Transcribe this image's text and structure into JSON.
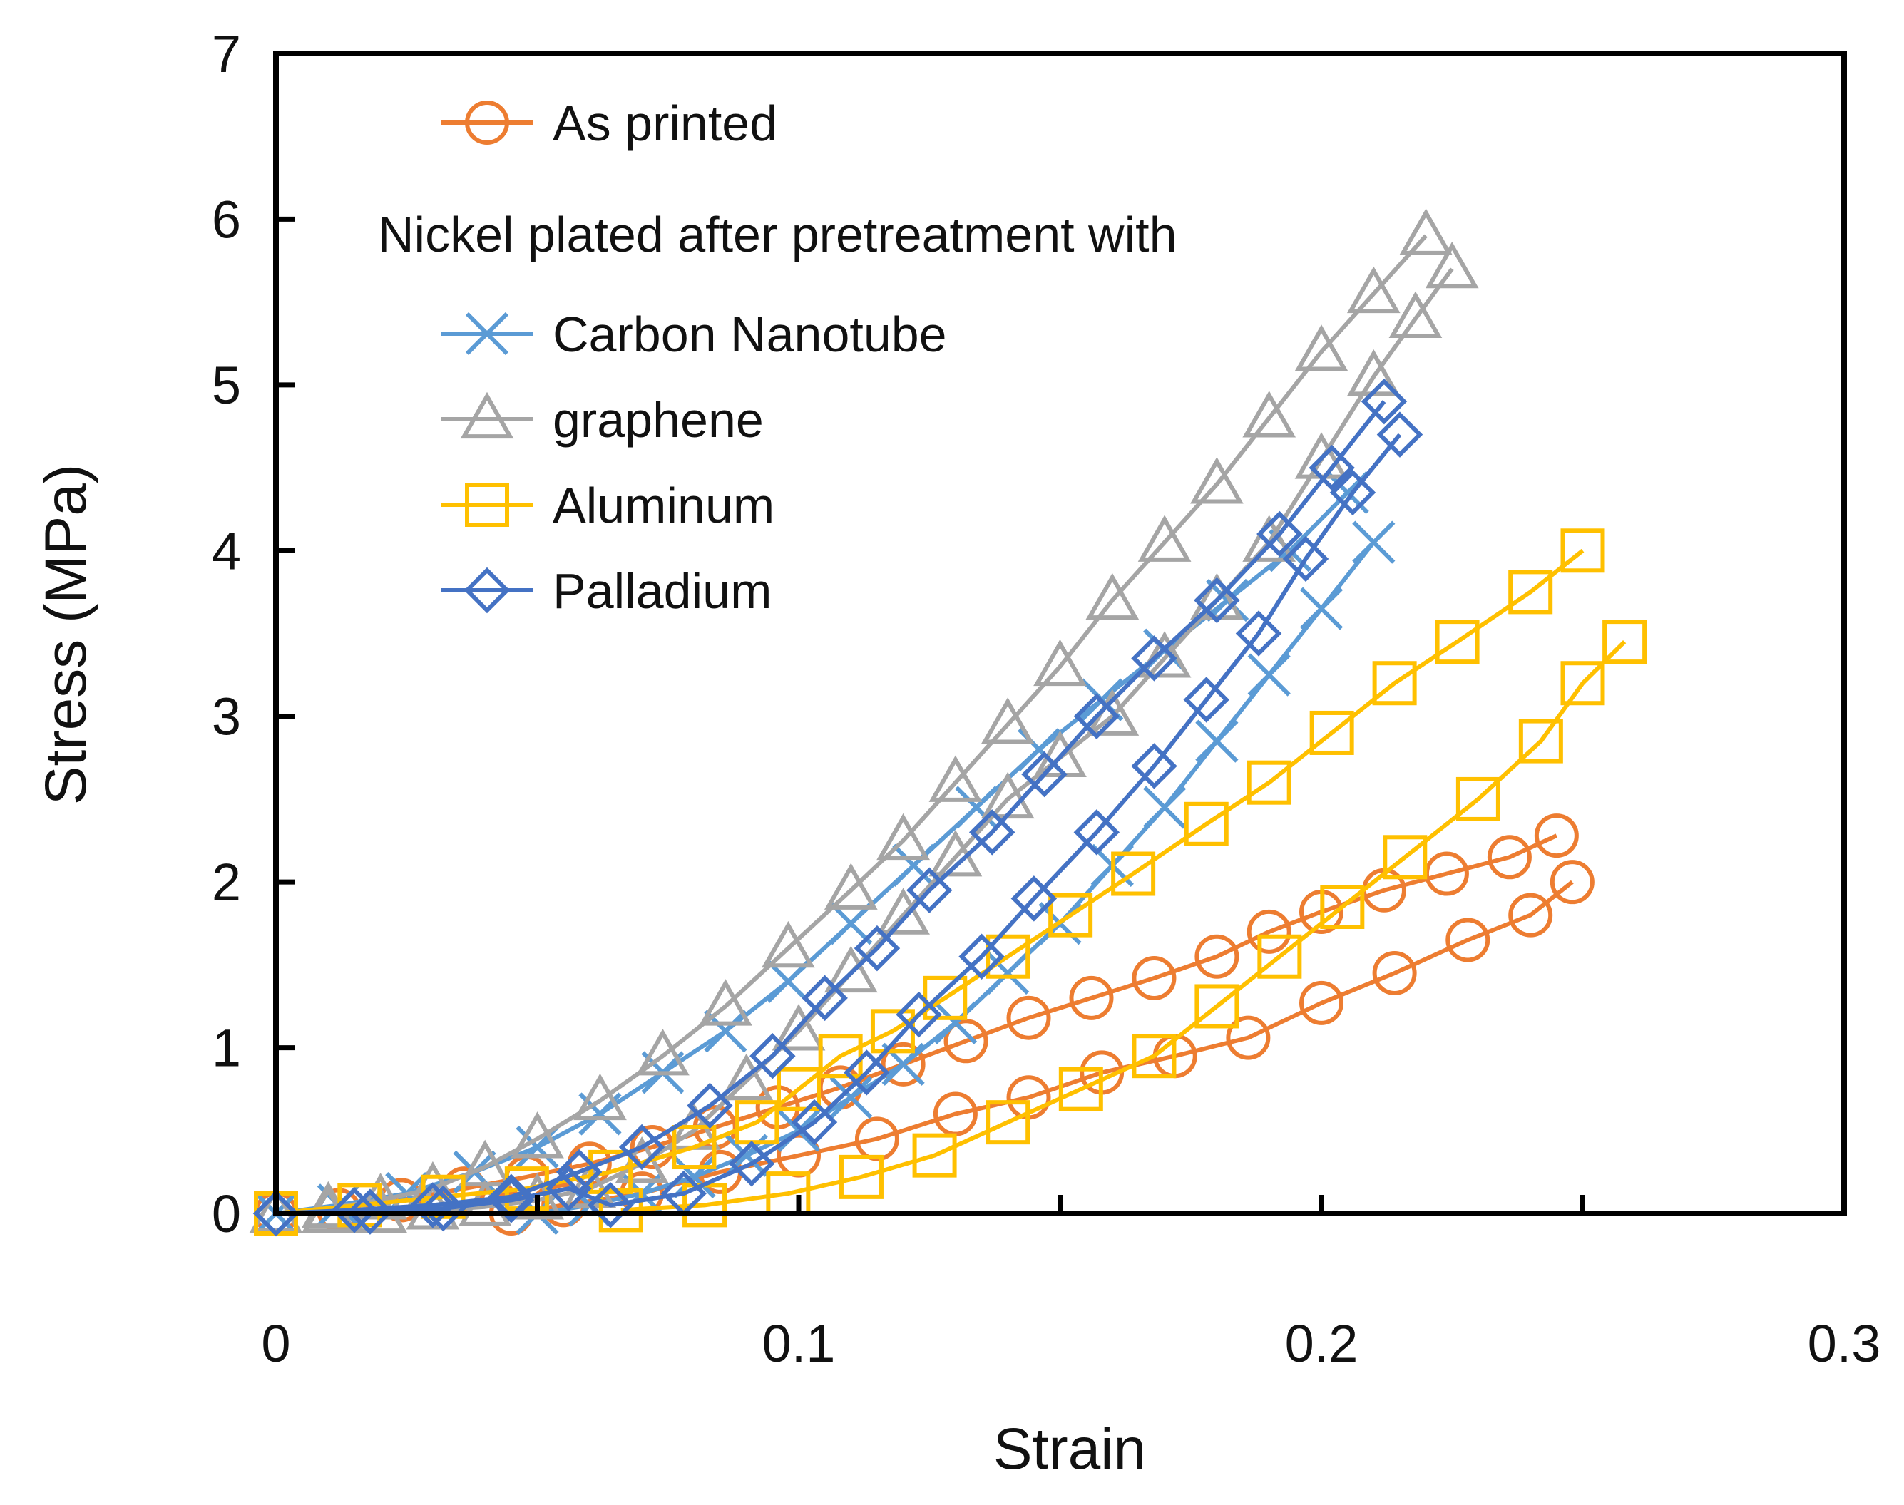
{
  "chart_data": {
    "type": "scatter",
    "xlabel": "Strain",
    "ylabel": "Stress (MPa)",
    "xlim": [
      0,
      0.3
    ],
    "ylim": [
      0,
      7
    ],
    "xticks": [
      "0",
      "0.1",
      "0.2",
      "0.3"
    ],
    "yticks": [
      "0",
      "1",
      "2",
      "3",
      "4",
      "5",
      "6",
      "7"
    ],
    "grid": false,
    "legend": {
      "placement": "top-left",
      "heading": "Nickel plated after pretreatment with"
    },
    "series": [
      {
        "name": "As printed",
        "color": "#ED7D31",
        "marker": "circle",
        "loading": {
          "x": [
            0.0,
            0.012,
            0.024,
            0.036,
            0.048,
            0.06,
            0.072,
            0.084,
            0.096,
            0.108,
            0.12,
            0.132,
            0.144,
            0.156,
            0.168,
            0.18,
            0.19,
            0.2,
            0.212,
            0.224,
            0.236,
            0.245
          ],
          "y": [
            0.0,
            0.02,
            0.08,
            0.15,
            0.22,
            0.3,
            0.4,
            0.52,
            0.64,
            0.76,
            0.9,
            1.04,
            1.18,
            1.3,
            1.42,
            1.55,
            1.7,
            1.82,
            1.95,
            2.05,
            2.15,
            2.28
          ]
        },
        "unloading": {
          "x": [
            0.248,
            0.24,
            0.228,
            0.214,
            0.2,
            0.186,
            0.172,
            0.158,
            0.144,
            0.13,
            0.115,
            0.1,
            0.085,
            0.07,
            0.055,
            0.045
          ],
          "y": [
            2.0,
            1.8,
            1.65,
            1.45,
            1.27,
            1.06,
            0.95,
            0.85,
            0.7,
            0.6,
            0.45,
            0.35,
            0.25,
            0.12,
            0.05,
            0.0
          ]
        }
      },
      {
        "name": "Carbon Nanotube",
        "color": "#5B9BD5",
        "marker": "x",
        "loading": {
          "x": [
            0.0,
            0.012,
            0.025,
            0.038,
            0.05,
            0.062,
            0.074,
            0.086,
            0.098,
            0.11,
            0.122,
            0.134,
            0.146,
            0.158,
            0.17,
            0.182,
            0.194,
            0.205
          ],
          "y": [
            0.0,
            0.05,
            0.12,
            0.25,
            0.4,
            0.6,
            0.85,
            1.1,
            1.4,
            1.75,
            2.1,
            2.45,
            2.8,
            3.1,
            3.4,
            3.7,
            4.0,
            4.35
          ]
        },
        "unloading": {
          "x": [
            0.21,
            0.2,
            0.19,
            0.18,
            0.17,
            0.16,
            0.15,
            0.14,
            0.13,
            0.12,
            0.11,
            0.1,
            0.09,
            0.08,
            0.07,
            0.06,
            0.05
          ],
          "y": [
            4.05,
            3.65,
            3.25,
            2.85,
            2.45,
            2.1,
            1.75,
            1.45,
            1.15,
            0.9,
            0.7,
            0.5,
            0.35,
            0.22,
            0.12,
            0.05,
            0.0
          ]
        }
      },
      {
        "name": "graphene",
        "color": "#A5A5A5",
        "marker": "triangle",
        "loading": {
          "x": [
            0.0,
            0.01,
            0.02,
            0.03,
            0.04,
            0.05,
            0.062,
            0.074,
            0.086,
            0.098,
            0.11,
            0.12,
            0.13,
            0.14,
            0.15,
            0.16,
            0.17,
            0.18,
            0.19,
            0.2,
            0.21,
            0.22
          ],
          "y": [
            0.0,
            0.03,
            0.08,
            0.15,
            0.28,
            0.45,
            0.68,
            0.95,
            1.25,
            1.6,
            1.95,
            2.25,
            2.6,
            2.95,
            3.3,
            3.7,
            4.05,
            4.4,
            4.8,
            5.2,
            5.55,
            5.9
          ]
        },
        "unloading": {
          "x": [
            0.225,
            0.218,
            0.21,
            0.2,
            0.19,
            0.18,
            0.17,
            0.16,
            0.15,
            0.14,
            0.13,
            0.12,
            0.11,
            0.1,
            0.09,
            0.08,
            0.07,
            0.06,
            0.05,
            0.04,
            0.03,
            0.02,
            0.01
          ],
          "y": [
            5.7,
            5.4,
            5.05,
            4.55,
            4.05,
            3.7,
            3.35,
            3.0,
            2.75,
            2.5,
            2.15,
            1.8,
            1.45,
            1.1,
            0.8,
            0.5,
            0.3,
            0.15,
            0.08,
            0.04,
            0.02,
            0.0,
            0.0
          ]
        }
      },
      {
        "name": "Aluminum",
        "color": "#FFC000",
        "marker": "square",
        "loading": {
          "x": [
            0.0,
            0.016,
            0.032,
            0.048,
            0.064,
            0.08,
            0.092,
            0.1,
            0.108,
            0.118,
            0.128,
            0.14,
            0.152,
            0.164,
            0.178,
            0.19,
            0.202,
            0.214,
            0.226,
            0.24,
            0.25
          ],
          "y": [
            0.0,
            0.05,
            0.1,
            0.15,
            0.25,
            0.4,
            0.55,
            0.75,
            0.95,
            1.1,
            1.3,
            1.55,
            1.8,
            2.05,
            2.35,
            2.6,
            2.9,
            3.2,
            3.45,
            3.75,
            4.0
          ]
        },
        "unloading": {
          "x": [
            0.258,
            0.25,
            0.242,
            0.23,
            0.216,
            0.204,
            0.192,
            0.18,
            0.168,
            0.154,
            0.14,
            0.126,
            0.112,
            0.098,
            0.082,
            0.066
          ],
          "y": [
            3.45,
            3.2,
            2.85,
            2.5,
            2.15,
            1.85,
            1.55,
            1.25,
            0.95,
            0.75,
            0.55,
            0.35,
            0.22,
            0.12,
            0.05,
            0.02
          ]
        }
      },
      {
        "name": "Palladium",
        "color": "#4472C4",
        "marker": "diamond",
        "loading": {
          "x": [
            0.0,
            0.015,
            0.03,
            0.045,
            0.058,
            0.07,
            0.083,
            0.095,
            0.105,
            0.115,
            0.125,
            0.137,
            0.147,
            0.157,
            0.168,
            0.18,
            0.192,
            0.202,
            0.212
          ],
          "y": [
            0.0,
            0.02,
            0.05,
            0.1,
            0.25,
            0.4,
            0.65,
            0.95,
            1.3,
            1.6,
            1.95,
            2.3,
            2.65,
            3.0,
            3.35,
            3.7,
            4.1,
            4.5,
            4.9
          ]
        },
        "unloading": {
          "x": [
            0.215,
            0.206,
            0.197,
            0.188,
            0.178,
            0.168,
            0.157,
            0.145,
            0.135,
            0.123,
            0.113,
            0.103,
            0.091,
            0.078,
            0.064,
            0.056,
            0.045,
            0.032,
            0.018,
            0.0
          ],
          "y": [
            4.7,
            4.35,
            3.95,
            3.5,
            3.1,
            2.7,
            2.3,
            1.9,
            1.55,
            1.2,
            0.85,
            0.55,
            0.3,
            0.12,
            0.05,
            0.15,
            0.08,
            0.03,
            0.01,
            0.0
          ]
        }
      }
    ]
  }
}
